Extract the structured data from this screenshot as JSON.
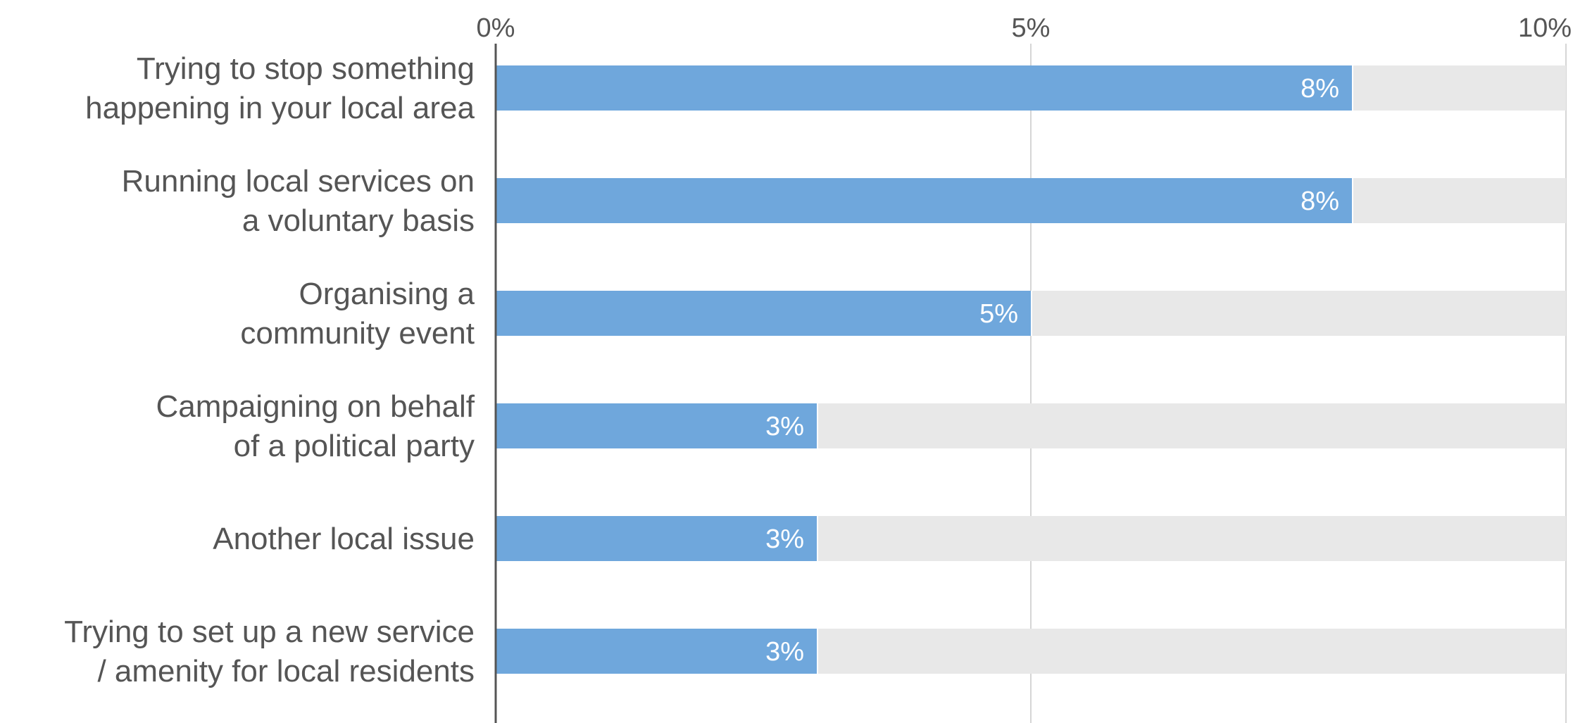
{
  "chart_data": {
    "type": "bar",
    "orientation": "horizontal",
    "categories": [
      [
        "Trying to stop something",
        "happening in your local area"
      ],
      [
        "Running local services on",
        "a voluntary basis"
      ],
      [
        "Organising a",
        "community event"
      ],
      [
        "Campaigning on behalf",
        "of a political party"
      ],
      [
        "Another local issue"
      ],
      [
        "Trying to set up a new service",
        "/ amenity for local residents"
      ]
    ],
    "values": [
      8,
      8,
      5,
      3,
      3,
      3
    ],
    "value_labels": [
      "8%",
      "8%",
      "5%",
      "3%",
      "3%",
      "3%"
    ],
    "xlim": [
      0,
      10
    ],
    "x_ticks": [
      0,
      5,
      10
    ],
    "x_tick_labels": [
      "0%",
      "5%",
      "10%"
    ],
    "x_axis_position": "top",
    "grid": true,
    "colors": {
      "bar": "#6fa7dc",
      "track": "#e8e8e8",
      "grid": "#d6d6d6",
      "axis": "#555555",
      "text": "#555555",
      "value_text": "#ffffff"
    }
  }
}
